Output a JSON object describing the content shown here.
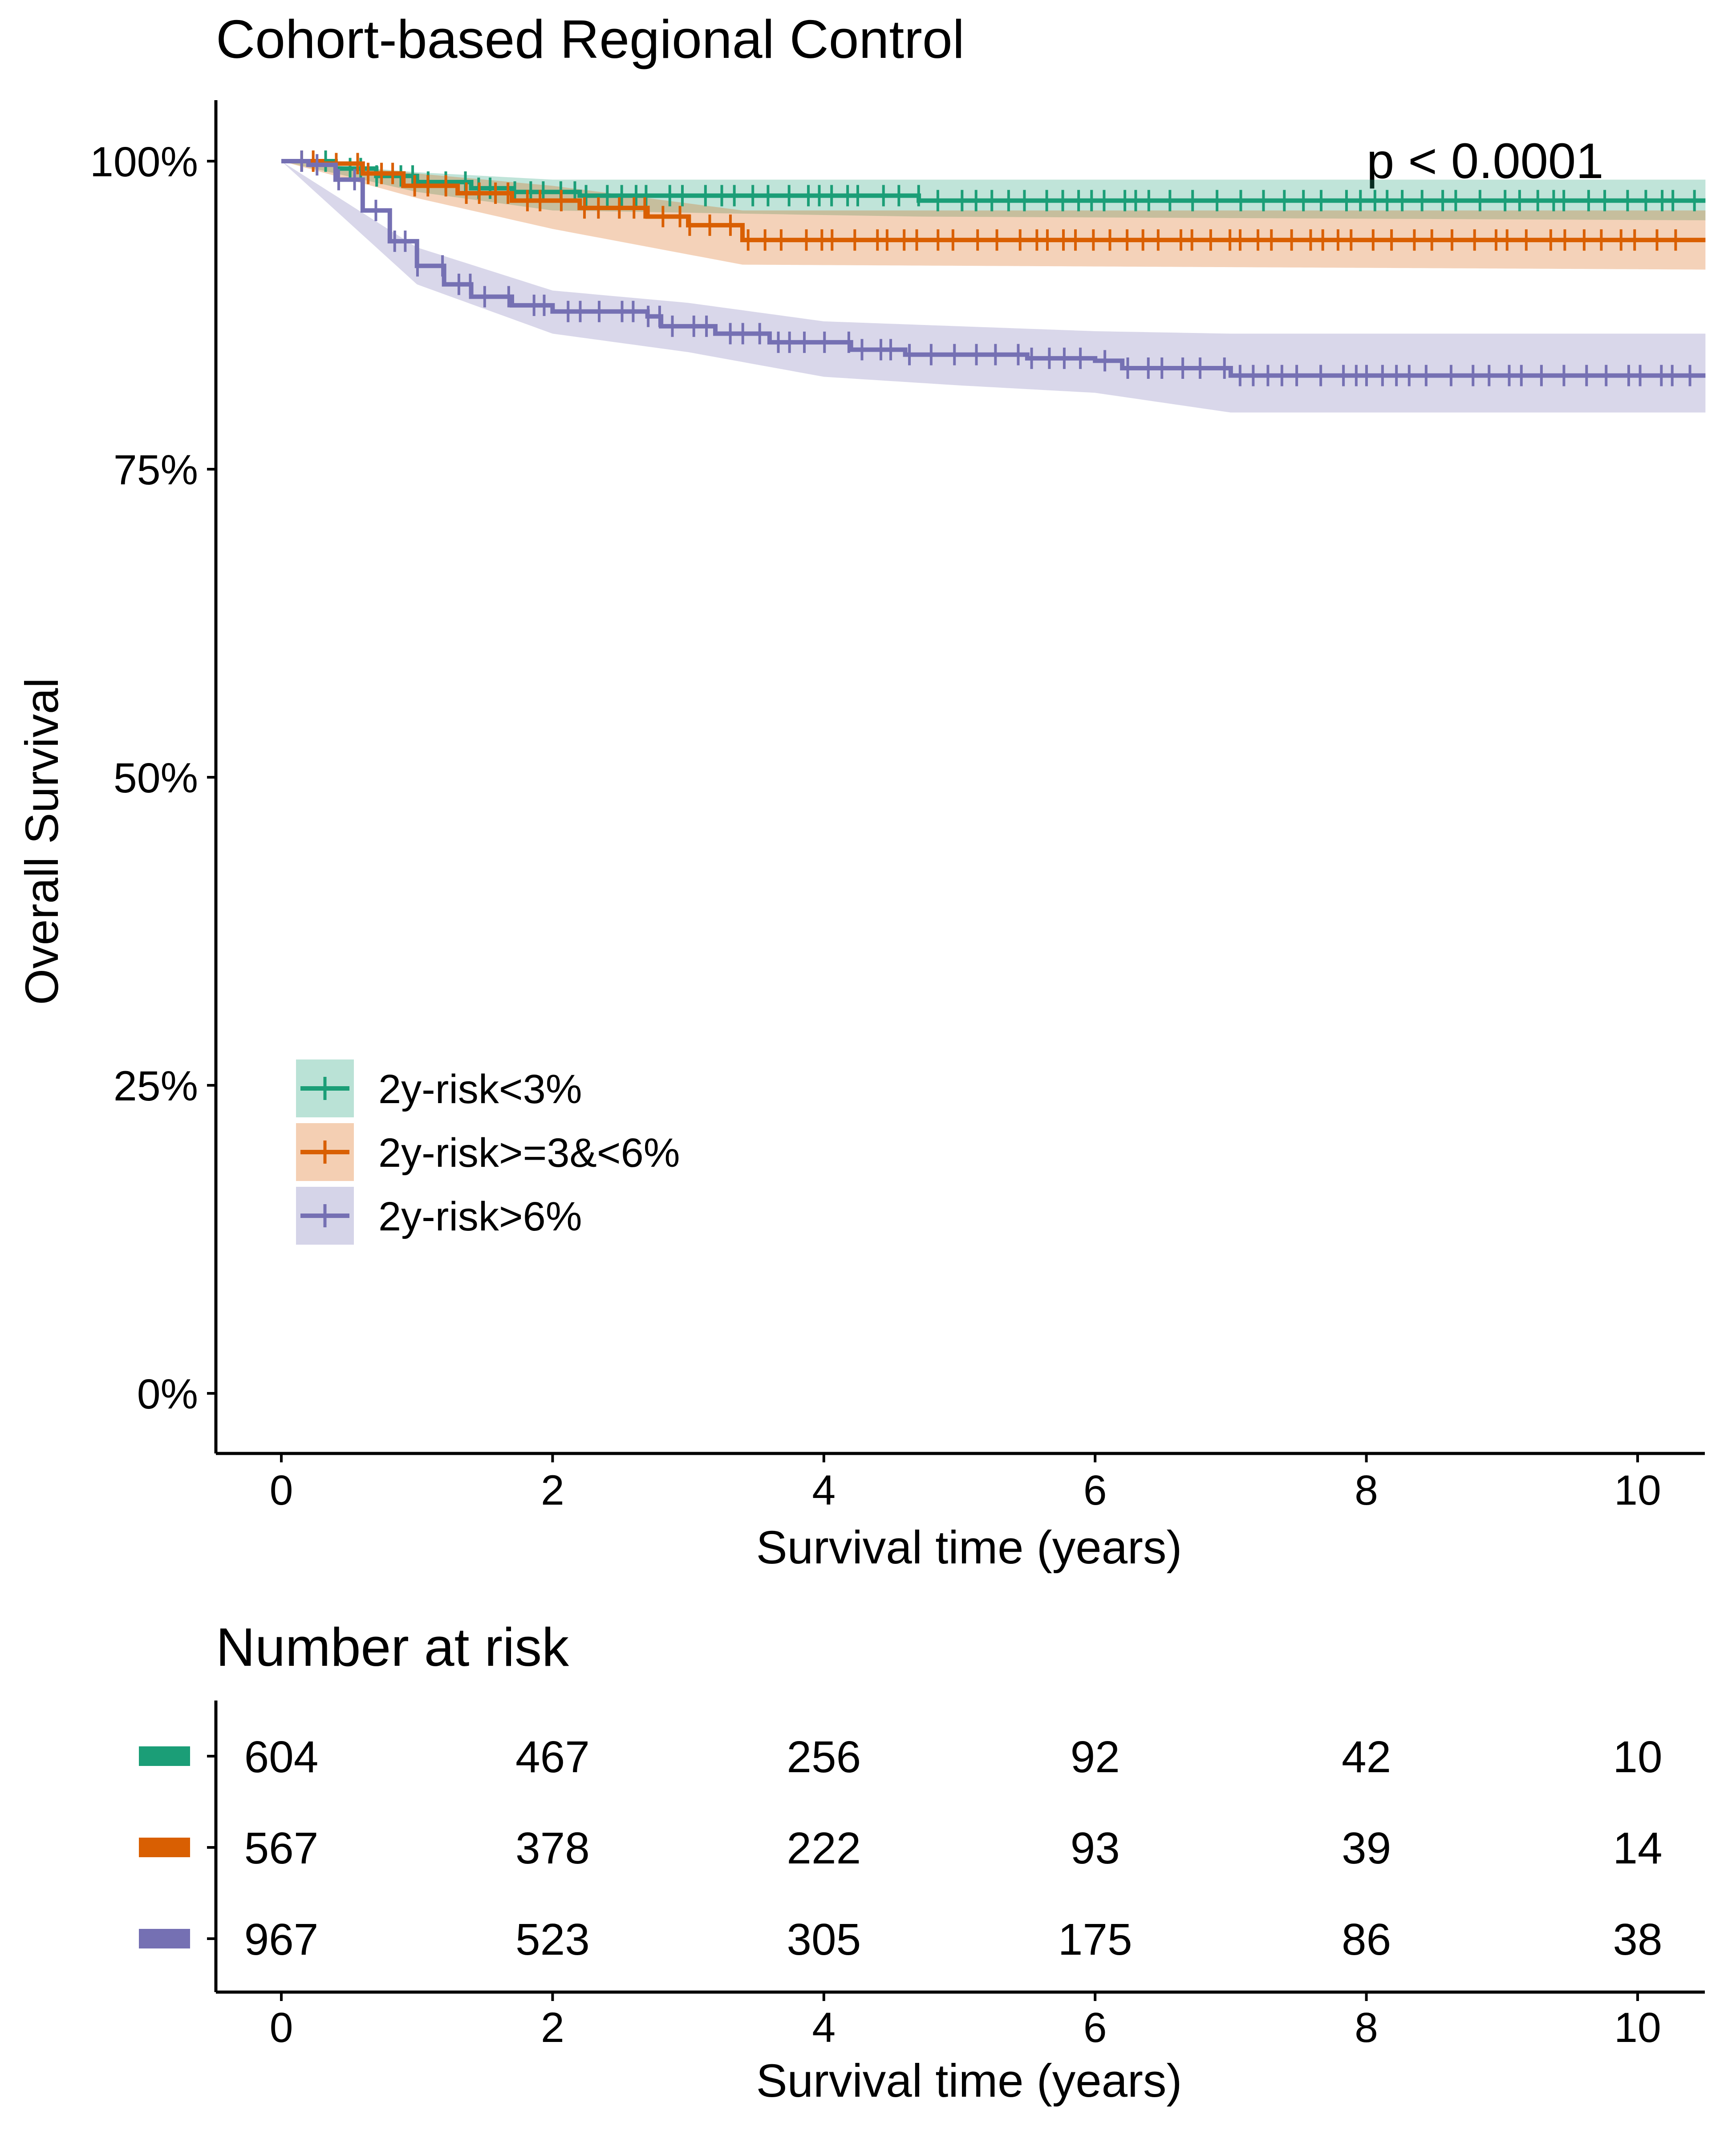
{
  "chart_data": {
    "type": "line",
    "subtype": "kaplan-meier",
    "title": "Cohort-based Regional Control",
    "xlabel": "Survival time (years)",
    "ylabel": "Overall Survival",
    "xlim": [
      -0.5,
      10.5
    ],
    "ylim": [
      -0.05,
      1.05
    ],
    "x_ticks": [
      0,
      2,
      4,
      6,
      8,
      10
    ],
    "y_ticks": [
      0,
      0.25,
      0.5,
      0.75,
      1.0
    ],
    "y_tick_labels": [
      "0%",
      "25%",
      "50%",
      "75%",
      "100%"
    ],
    "annotation": "p < 0.0001",
    "legend_position": "bottom-left",
    "grid": false,
    "series": [
      {
        "name": "2y-risk<3%",
        "color": "#1b9e77",
        "points": [
          [
            0,
            1.0
          ],
          [
            0.25,
            1.0
          ],
          [
            0.4,
            0.994
          ],
          [
            0.7,
            0.988
          ],
          [
            1.0,
            0.983
          ],
          [
            1.4,
            0.978
          ],
          [
            1.7,
            0.975
          ],
          [
            2.2,
            0.972
          ],
          [
            3.0,
            0.972
          ],
          [
            4.7,
            0.972
          ],
          [
            4.7,
            0.968
          ],
          [
            10.5,
            0.968
          ]
        ],
        "ci_upper": [
          [
            0,
            1.0
          ],
          [
            1.0,
            0.991
          ],
          [
            2.0,
            0.985
          ],
          [
            4.7,
            0.985
          ],
          [
            10.5,
            0.985
          ]
        ],
        "ci_lower": [
          [
            0,
            1.0
          ],
          [
            1.0,
            0.975
          ],
          [
            2.0,
            0.96
          ],
          [
            4.7,
            0.955
          ],
          [
            10.5,
            0.952
          ]
        ]
      },
      {
        "name": "2y-risk>=3&<6%",
        "color": "#d95f02",
        "points": [
          [
            0,
            1.0
          ],
          [
            0.3,
            0.998
          ],
          [
            0.6,
            0.99
          ],
          [
            0.9,
            0.98
          ],
          [
            1.3,
            0.974
          ],
          [
            1.7,
            0.968
          ],
          [
            2.2,
            0.962
          ],
          [
            2.7,
            0.955
          ],
          [
            3.0,
            0.948
          ],
          [
            3.4,
            0.942
          ],
          [
            3.4,
            0.936
          ],
          [
            10.5,
            0.936
          ]
        ],
        "ci_upper": [
          [
            0,
            1.0
          ],
          [
            1.0,
            0.99
          ],
          [
            2.0,
            0.98
          ],
          [
            3.4,
            0.96
          ],
          [
            10.5,
            0.96
          ]
        ],
        "ci_lower": [
          [
            0,
            1.0
          ],
          [
            1.0,
            0.97
          ],
          [
            2.0,
            0.945
          ],
          [
            3.4,
            0.916
          ],
          [
            10.5,
            0.912
          ]
        ]
      },
      {
        "name": "2y-risk>6%",
        "color": "#7570b3",
        "points": [
          [
            0,
            1.0
          ],
          [
            0.2,
            0.997
          ],
          [
            0.4,
            0.985
          ],
          [
            0.6,
            0.96
          ],
          [
            0.8,
            0.935
          ],
          [
            1.0,
            0.915
          ],
          [
            1.2,
            0.9
          ],
          [
            1.4,
            0.89
          ],
          [
            1.7,
            0.883
          ],
          [
            2.0,
            0.878
          ],
          [
            2.7,
            0.874
          ],
          [
            2.8,
            0.866
          ],
          [
            3.2,
            0.86
          ],
          [
            3.6,
            0.853
          ],
          [
            4.2,
            0.847
          ],
          [
            4.6,
            0.843
          ],
          [
            5.5,
            0.84
          ],
          [
            6.0,
            0.838
          ],
          [
            6.2,
            0.832
          ],
          [
            7.0,
            0.83
          ],
          [
            7.0,
            0.826
          ],
          [
            10.5,
            0.826
          ]
        ],
        "ci_upper": [
          [
            0,
            1.0
          ],
          [
            1.0,
            0.93
          ],
          [
            2.0,
            0.895
          ],
          [
            3.0,
            0.885
          ],
          [
            4.0,
            0.87
          ],
          [
            5.0,
            0.866
          ],
          [
            6.0,
            0.862
          ],
          [
            7.0,
            0.86
          ],
          [
            10.5,
            0.86
          ]
        ],
        "ci_lower": [
          [
            0,
            1.0
          ],
          [
            1.0,
            0.9
          ],
          [
            2.0,
            0.86
          ],
          [
            3.0,
            0.845
          ],
          [
            4.0,
            0.825
          ],
          [
            5.0,
            0.818
          ],
          [
            6.0,
            0.812
          ],
          [
            7.0,
            0.796
          ],
          [
            10.5,
            0.796
          ]
        ]
      }
    ],
    "risk_table": {
      "title": "Number at risk",
      "xlabel": "Survival time (years)",
      "times": [
        0,
        2,
        4,
        6,
        8,
        10
      ],
      "rows": [
        {
          "name": "2y-risk<3%",
          "color": "#1b9e77",
          "counts": [
            "604",
            "467",
            "256",
            "92",
            "42",
            "10"
          ]
        },
        {
          "name": "2y-risk>=3&<6%",
          "color": "#d95f02",
          "counts": [
            "567",
            "378",
            "222",
            "93",
            "39",
            "14"
          ]
        },
        {
          "name": "2y-risk>6%",
          "color": "#7570b3",
          "counts": [
            "967",
            "523",
            "305",
            "175",
            "86",
            "38"
          ]
        }
      ]
    }
  }
}
